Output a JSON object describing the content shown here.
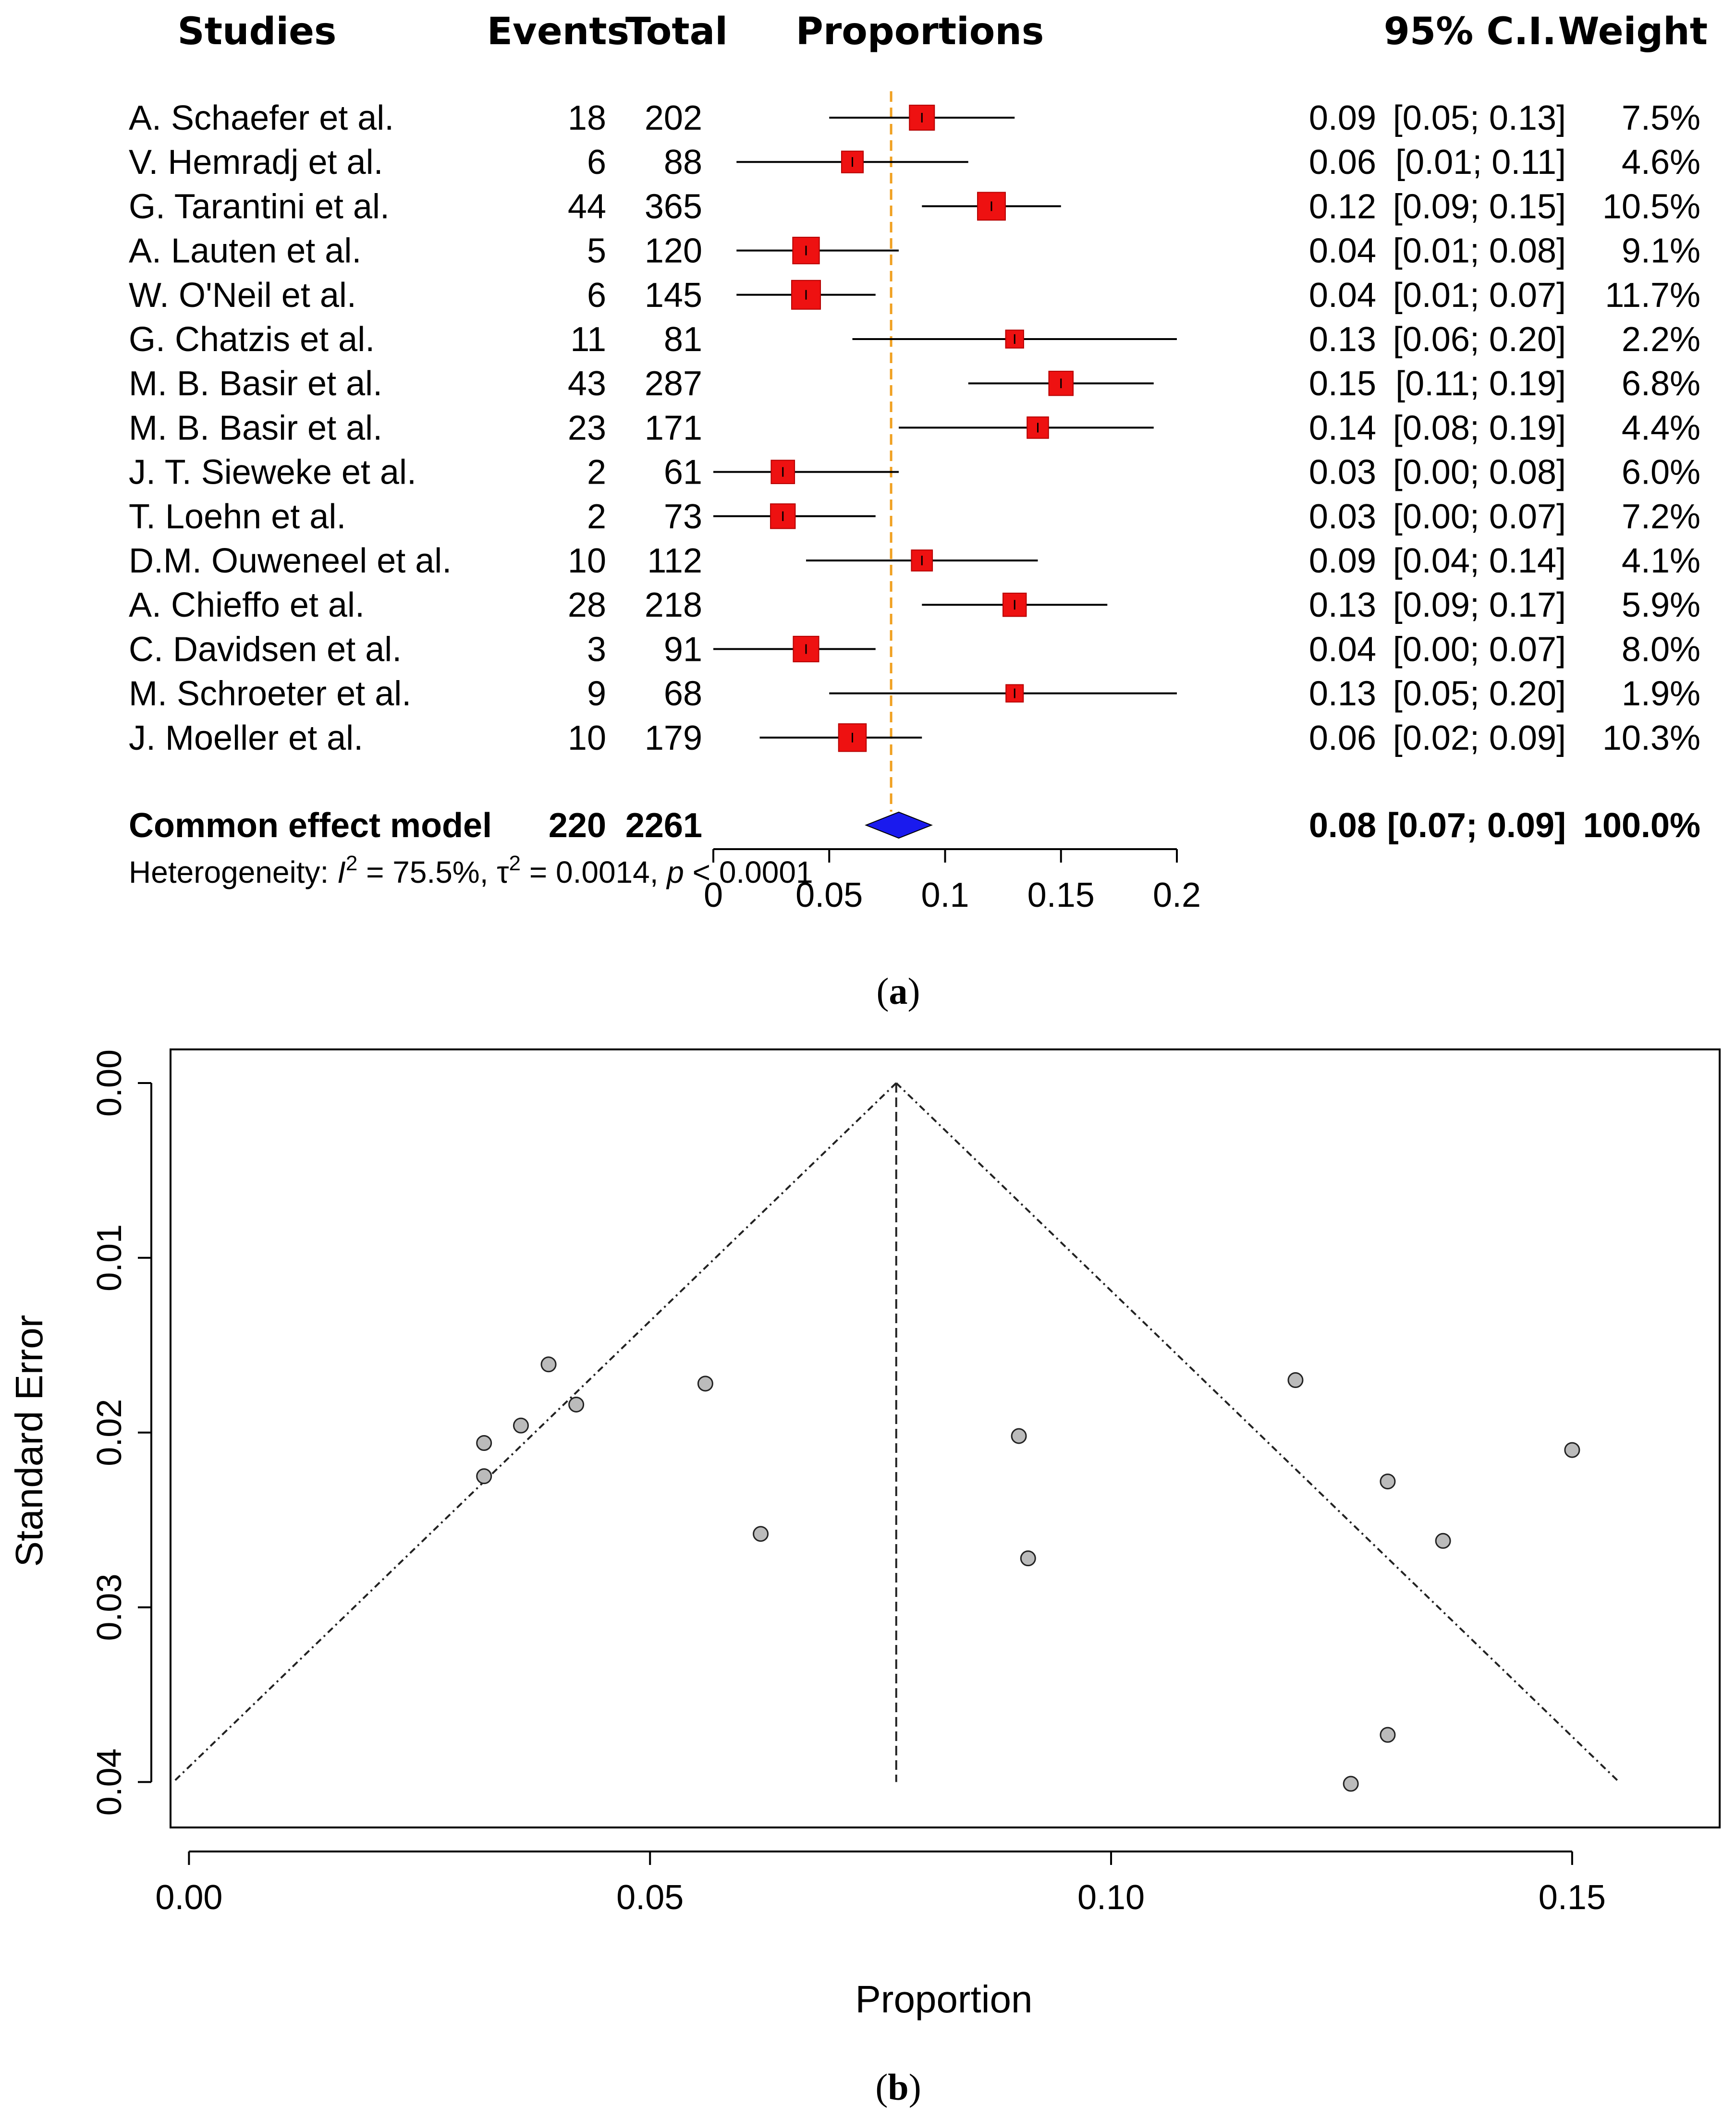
{
  "chart_data": [
    {
      "type": "forest",
      "panel_label": "a",
      "headers": {
        "studies": "Studies",
        "events": "Events",
        "total": "Total",
        "proportions": "Proportions",
        "ci": "95% C.I.",
        "weight": "Weight"
      },
      "studies": [
        {
          "name": "A. Schaefer et al.",
          "events": "18",
          "total": "202",
          "est": 0.09,
          "lo": 0.05,
          "hi": 0.13,
          "est_txt": "0.09",
          "ci_txt": "[0.05; 0.13]",
          "weight": "7.5%",
          "w": 7.5
        },
        {
          "name": "V. Hemradj et al.",
          "events": "6",
          "total": "88",
          "est": 0.06,
          "lo": 0.01,
          "hi": 0.11,
          "est_txt": "0.06",
          "ci_txt": "[0.01; 0.11]",
          "weight": "4.6%",
          "w": 4.6
        },
        {
          "name": "G. Tarantini et al.",
          "events": "44",
          "total": "365",
          "est": 0.12,
          "lo": 0.09,
          "hi": 0.15,
          "est_txt": "0.12",
          "ci_txt": "[0.09; 0.15]",
          "weight": "10.5%",
          "w": 10.5
        },
        {
          "name": "A. Lauten et al.",
          "events": "5",
          "total": "120",
          "est": 0.04,
          "lo": 0.01,
          "hi": 0.08,
          "est_txt": "0.04",
          "ci_txt": "[0.01; 0.08]",
          "weight": "9.1%",
          "w": 9.1
        },
        {
          "name": "W. O'Neil et al.",
          "events": "6",
          "total": "145",
          "est": 0.04,
          "lo": 0.01,
          "hi": 0.07,
          "est_txt": "0.04",
          "ci_txt": "[0.01; 0.07]",
          "weight": "11.7%",
          "w": 11.7
        },
        {
          "name": "G. Chatzis et al.",
          "events": "11",
          "total": "81",
          "est": 0.13,
          "lo": 0.06,
          "hi": 0.2,
          "est_txt": "0.13",
          "ci_txt": "[0.06; 0.20]",
          "weight": "2.2%",
          "w": 2.2
        },
        {
          "name": "M. B. Basir et al.",
          "events": "43",
          "total": "287",
          "est": 0.15,
          "lo": 0.11,
          "hi": 0.19,
          "est_txt": "0.15",
          "ci_txt": "[0.11; 0.19]",
          "weight": "6.8%",
          "w": 6.8
        },
        {
          "name": "M. B. Basir et al.",
          "events": "23",
          "total": "171",
          "est": 0.14,
          "lo": 0.08,
          "hi": 0.19,
          "est_txt": "0.14",
          "ci_txt": "[0.08; 0.19]",
          "weight": "4.4%",
          "w": 4.4
        },
        {
          "name": "J. T. Sieweke et al.",
          "events": "2",
          "total": "61",
          "est": 0.03,
          "lo": 0.0,
          "hi": 0.08,
          "est_txt": "0.03",
          "ci_txt": "[0.00; 0.08]",
          "weight": "6.0%",
          "w": 6.0
        },
        {
          "name": "T. Loehn et al.",
          "events": "2",
          "total": "73",
          "est": 0.03,
          "lo": 0.0,
          "hi": 0.07,
          "est_txt": "0.03",
          "ci_txt": "[0.00; 0.07]",
          "weight": "7.2%",
          "w": 7.2
        },
        {
          "name": "D.M. Ouweneel et al.",
          "events": "10",
          "total": "112",
          "est": 0.09,
          "lo": 0.04,
          "hi": 0.14,
          "est_txt": "0.09",
          "ci_txt": "[0.04; 0.14]",
          "weight": "4.1%",
          "w": 4.1
        },
        {
          "name": "A. Chieffo et al.",
          "events": "28",
          "total": "218",
          "est": 0.13,
          "lo": 0.09,
          "hi": 0.17,
          "est_txt": "0.13",
          "ci_txt": "[0.09; 0.17]",
          "weight": "5.9%",
          "w": 5.9
        },
        {
          "name": "C. Davidsen et al.",
          "events": "3",
          "total": "91",
          "est": 0.04,
          "lo": 0.0,
          "hi": 0.07,
          "est_txt": "0.04",
          "ci_txt": "[0.00; 0.07]",
          "weight": "8.0%",
          "w": 8.0
        },
        {
          "name": "M. Schroeter et al.",
          "events": "9",
          "total": "68",
          "est": 0.13,
          "lo": 0.05,
          "hi": 0.2,
          "est_txt": "0.13",
          "ci_txt": "[0.05; 0.20]",
          "weight": "1.9%",
          "w": 1.9
        },
        {
          "name": "J. Moeller et al.",
          "events": "10",
          "total": "179",
          "est": 0.06,
          "lo": 0.02,
          "hi": 0.09,
          "est_txt": "0.06",
          "ci_txt": "[0.02; 0.09]",
          "weight": "10.3%",
          "w": 10.3
        }
      ],
      "pooled": {
        "name": "Common effect model",
        "events": "220",
        "total": "2261",
        "est": 0.08,
        "lo": 0.07,
        "hi": 0.09,
        "est_txt": "0.08",
        "ci_txt": "[0.07; 0.09]",
        "weight": "100.0%"
      },
      "heterogeneity": {
        "prefix": "Heterogeneity: ",
        "i2_sym": "I",
        "i2_val": " = 75.5%, ",
        "tau_sym": "τ",
        "tau_val": " = 0.0014, ",
        "p_sym": "p",
        "p_val": " < 0.0001",
        "sup": "2"
      },
      "x_axis": {
        "ticks": [
          0,
          0.05,
          0.1,
          0.15,
          0.2
        ],
        "tick_labels": [
          "0",
          "0.05",
          "0.1",
          "0.15",
          "0.2"
        ],
        "xlim": [
          0,
          0.2
        ]
      },
      "reference_line": 0.0767,
      "colors": {
        "square": "#ee1111",
        "square_edge": "#b40000",
        "diamond": "#1a1aee",
        "reference": "#f0a020"
      }
    },
    {
      "type": "scatter",
      "panel_label": "b",
      "xlabel": "Proportion",
      "ylabel": "Standard Error",
      "xlim": [
        -0.002,
        0.166
      ],
      "ylim": [
        0,
        0.0415
      ],
      "x_ticks": [
        0.0,
        0.05,
        0.1,
        0.15
      ],
      "x_tick_labels": [
        "0.00",
        "0.05",
        "0.10",
        "0.15"
      ],
      "y_ticks": [
        0.0,
        0.01,
        0.02,
        0.03,
        0.04
      ],
      "y_tick_labels": [
        "0.00",
        "0.01",
        "0.02",
        "0.03",
        "0.04"
      ],
      "apex": {
        "x": 0.0767,
        "se": 0.0
      },
      "funnel_se_max": 0.04,
      "points": [
        {
          "x": 0.039,
          "se": 0.0161
        },
        {
          "x": 0.042,
          "se": 0.0184
        },
        {
          "x": 0.036,
          "se": 0.0196
        },
        {
          "x": 0.032,
          "se": 0.0206
        },
        {
          "x": 0.032,
          "se": 0.0225
        },
        {
          "x": 0.056,
          "se": 0.0172
        },
        {
          "x": 0.062,
          "se": 0.0258
        },
        {
          "x": 0.09,
          "se": 0.0202
        },
        {
          "x": 0.091,
          "se": 0.0272
        },
        {
          "x": 0.12,
          "se": 0.017
        },
        {
          "x": 0.13,
          "se": 0.0228
        },
        {
          "x": 0.136,
          "se": 0.0262
        },
        {
          "x": 0.15,
          "se": 0.021
        },
        {
          "x": 0.13,
          "se": 0.0373
        },
        {
          "x": 0.126,
          "se": 0.0401
        }
      ],
      "colors": {
        "point_fill": "#bbbbbb",
        "point_edge": "#222222"
      }
    }
  ]
}
